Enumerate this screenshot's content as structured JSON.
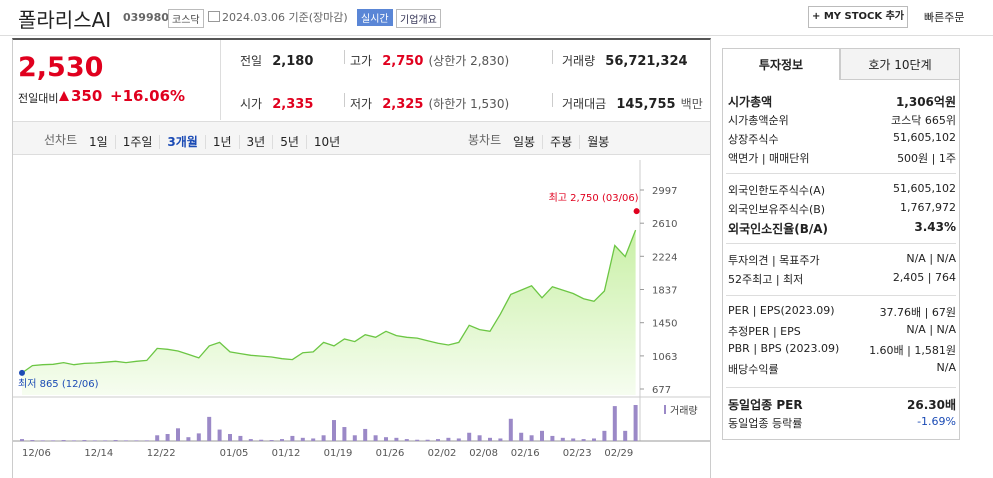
{
  "header": {
    "title": "폴라리스AI",
    "code": "039980",
    "market": "코스닥",
    "date": "2024.03.06 기준(장마감)",
    "realtime": "실시간",
    "company_info": "기업개요",
    "my_stock": "+ MY STOCK 추가",
    "quick_order": "빠른주문"
  },
  "quote": {
    "price": "2,530",
    "change_label": "전일대비",
    "change": "350",
    "change_pct": "+16.06%",
    "stats": [
      [
        {
          "label": "전일",
          "value": "2,180"
        },
        {
          "label": "고가",
          "value": "2,750",
          "note": "(상한가 2,830)"
        },
        {
          "label": "거래량",
          "value": "56,721,324"
        }
      ],
      [
        {
          "label": "시가",
          "value": "2,335"
        },
        {
          "label": "저가",
          "value": "2,325",
          "note": "(하한가 1,530)"
        },
        {
          "label": "거래대금",
          "value": "145,755",
          "note": "백만"
        }
      ]
    ]
  },
  "tabs": {
    "line_chart": "선차트",
    "line_periods": [
      "1일",
      "1주일",
      "3개월",
      "1년",
      "3년",
      "5년",
      "10년"
    ],
    "candle_chart": "봉차트",
    "candle_periods": [
      "일봉",
      "주봉",
      "월봉"
    ]
  },
  "chart_data": [
    {
      "type": "line",
      "color": "#6cc644",
      "values": [
        865,
        950,
        960,
        965,
        985,
        960,
        975,
        980,
        990,
        1000,
        985,
        1000,
        1010,
        1150,
        1140,
        1120,
        1080,
        1040,
        1180,
        1220,
        1110,
        1090,
        1070,
        1060,
        1050,
        1030,
        1020,
        1100,
        1110,
        1220,
        1180,
        1260,
        1230,
        1310,
        1280,
        1350,
        1300,
        1280,
        1270,
        1240,
        1210,
        1190,
        1220,
        1420,
        1370,
        1350,
        1550,
        1780,
        1830,
        1880,
        1740,
        1870,
        1830,
        1790,
        1730,
        1700,
        1820,
        2350,
        2220,
        2530
      ],
      "ylim": [
        677,
        2997
      ],
      "yticks": [
        677,
        1063,
        1450,
        1837,
        2224,
        2610,
        2997
      ],
      "high": 2750,
      "high_label": "최고 2,750 (03/06)",
      "low": 865,
      "low_label": "최저 865 (12/06)"
    },
    {
      "type": "bar",
      "categories": [
        "12/06",
        null,
        null,
        null,
        null,
        null,
        "12/14",
        null,
        null,
        null,
        null,
        null,
        "12/22",
        null,
        null,
        null,
        null,
        null,
        null,
        "01/05",
        null,
        null,
        null,
        null,
        "01/12",
        null,
        null,
        null,
        null,
        "01/19",
        null,
        null,
        null,
        null,
        "01/26",
        null,
        null,
        null,
        null,
        "02/02",
        null,
        null,
        null,
        "02/08",
        null,
        null,
        null,
        "02/16",
        null,
        null,
        null,
        null,
        "02/23",
        null,
        null,
        null,
        "02/29",
        null,
        null,
        null
      ],
      "series": [
        {
          "name": "거래량",
          "color": "#9b89c7",
          "values": [
            3000000,
            1500000,
            1000000,
            1000000,
            1500000,
            1000000,
            1500000,
            1000000,
            1000000,
            1500000,
            1000000,
            1000000,
            1000000,
            9000000,
            11000000,
            20000000,
            6000000,
            12000000,
            38000000,
            18000000,
            11000000,
            8000000,
            3000000,
            2000000,
            1500000,
            3000000,
            8000000,
            5000000,
            4000000,
            9000000,
            33000000,
            22000000,
            9000000,
            19000000,
            9000000,
            6000000,
            5000000,
            3000000,
            2000000,
            2000000,
            3000000,
            5000000,
            4000000,
            13000000,
            9000000,
            5000000,
            4000000,
            35000000,
            13000000,
            9000000,
            16000000,
            8000000,
            5000000,
            4000000,
            3000000,
            4000000,
            16000000,
            55000000,
            16000000,
            56721324
          ]
        }
      ]
    }
  ],
  "side": {
    "tabs": [
      "투자정보",
      "호가 10단계"
    ],
    "sections": [
      [
        {
          "label": "시가총액",
          "value": "1,306억원"
        },
        {
          "label": "시가총액순위",
          "value": "코스닥 665위"
        },
        {
          "label": "상장주식수",
          "value": "51,605,102"
        },
        {
          "label": "액면가 | 매매단위",
          "value": "500원 | 1주"
        }
      ],
      [
        {
          "label": "외국인한도주식수(A)",
          "value": "51,605,102"
        },
        {
          "label": "외국인보유주식수(B)",
          "value": "1,767,972"
        },
        {
          "label": "외국인소진율(B/A)",
          "value": "3.43%"
        }
      ],
      [
        {
          "label": "투자의견 | 목표주가",
          "value": "N/A | N/A"
        },
        {
          "label": "52주최고 | 최저",
          "value": "2,405 | 764"
        }
      ],
      [
        {
          "label": "PER | EPS(2023.09)",
          "value": "37.76배 | 67원"
        },
        {
          "label": "추정PER | EPS",
          "value": "N/A | N/A"
        },
        {
          "label": "PBR | BPS (2023.09)",
          "value": "1.60배 | 1,581원"
        },
        {
          "label": "배당수익률",
          "value": "N/A"
        }
      ],
      [
        {
          "label": "동일업종 PER",
          "value": "26.30배"
        },
        {
          "label": "동일업종 등락률",
          "value": "-1.69%"
        }
      ]
    ]
  }
}
